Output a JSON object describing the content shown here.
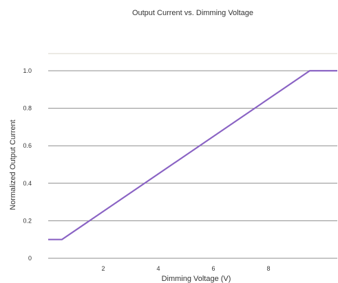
{
  "chart_data": {
    "type": "line",
    "title": "Output Current vs. Dimming Voltage",
    "xlabel": "Dimming Voltage (V)",
    "ylabel": "Normalized Output Current",
    "x": [
      0,
      0.5,
      9.5,
      10.5
    ],
    "series": [
      {
        "values": [
          0.1,
          0.1,
          1.0,
          1.0
        ],
        "color": "#8a63c4"
      }
    ],
    "xlim": [
      0,
      10.5
    ],
    "ylim": [
      0,
      1.0
    ],
    "xticks": [
      2,
      4,
      6,
      8
    ],
    "xtick_labels": [
      "2",
      "4",
      "6",
      "8"
    ],
    "yticks": [
      0,
      0.2,
      0.4,
      0.6,
      0.8,
      1.0
    ],
    "ytick_labels": [
      "0",
      "0.2",
      "0.4",
      "0.6",
      "0.8",
      "1.0"
    ],
    "grid": true,
    "colors": {
      "grid": "#8c8c8c",
      "top_rule": "#d9d4c8",
      "text": "#333333"
    }
  }
}
